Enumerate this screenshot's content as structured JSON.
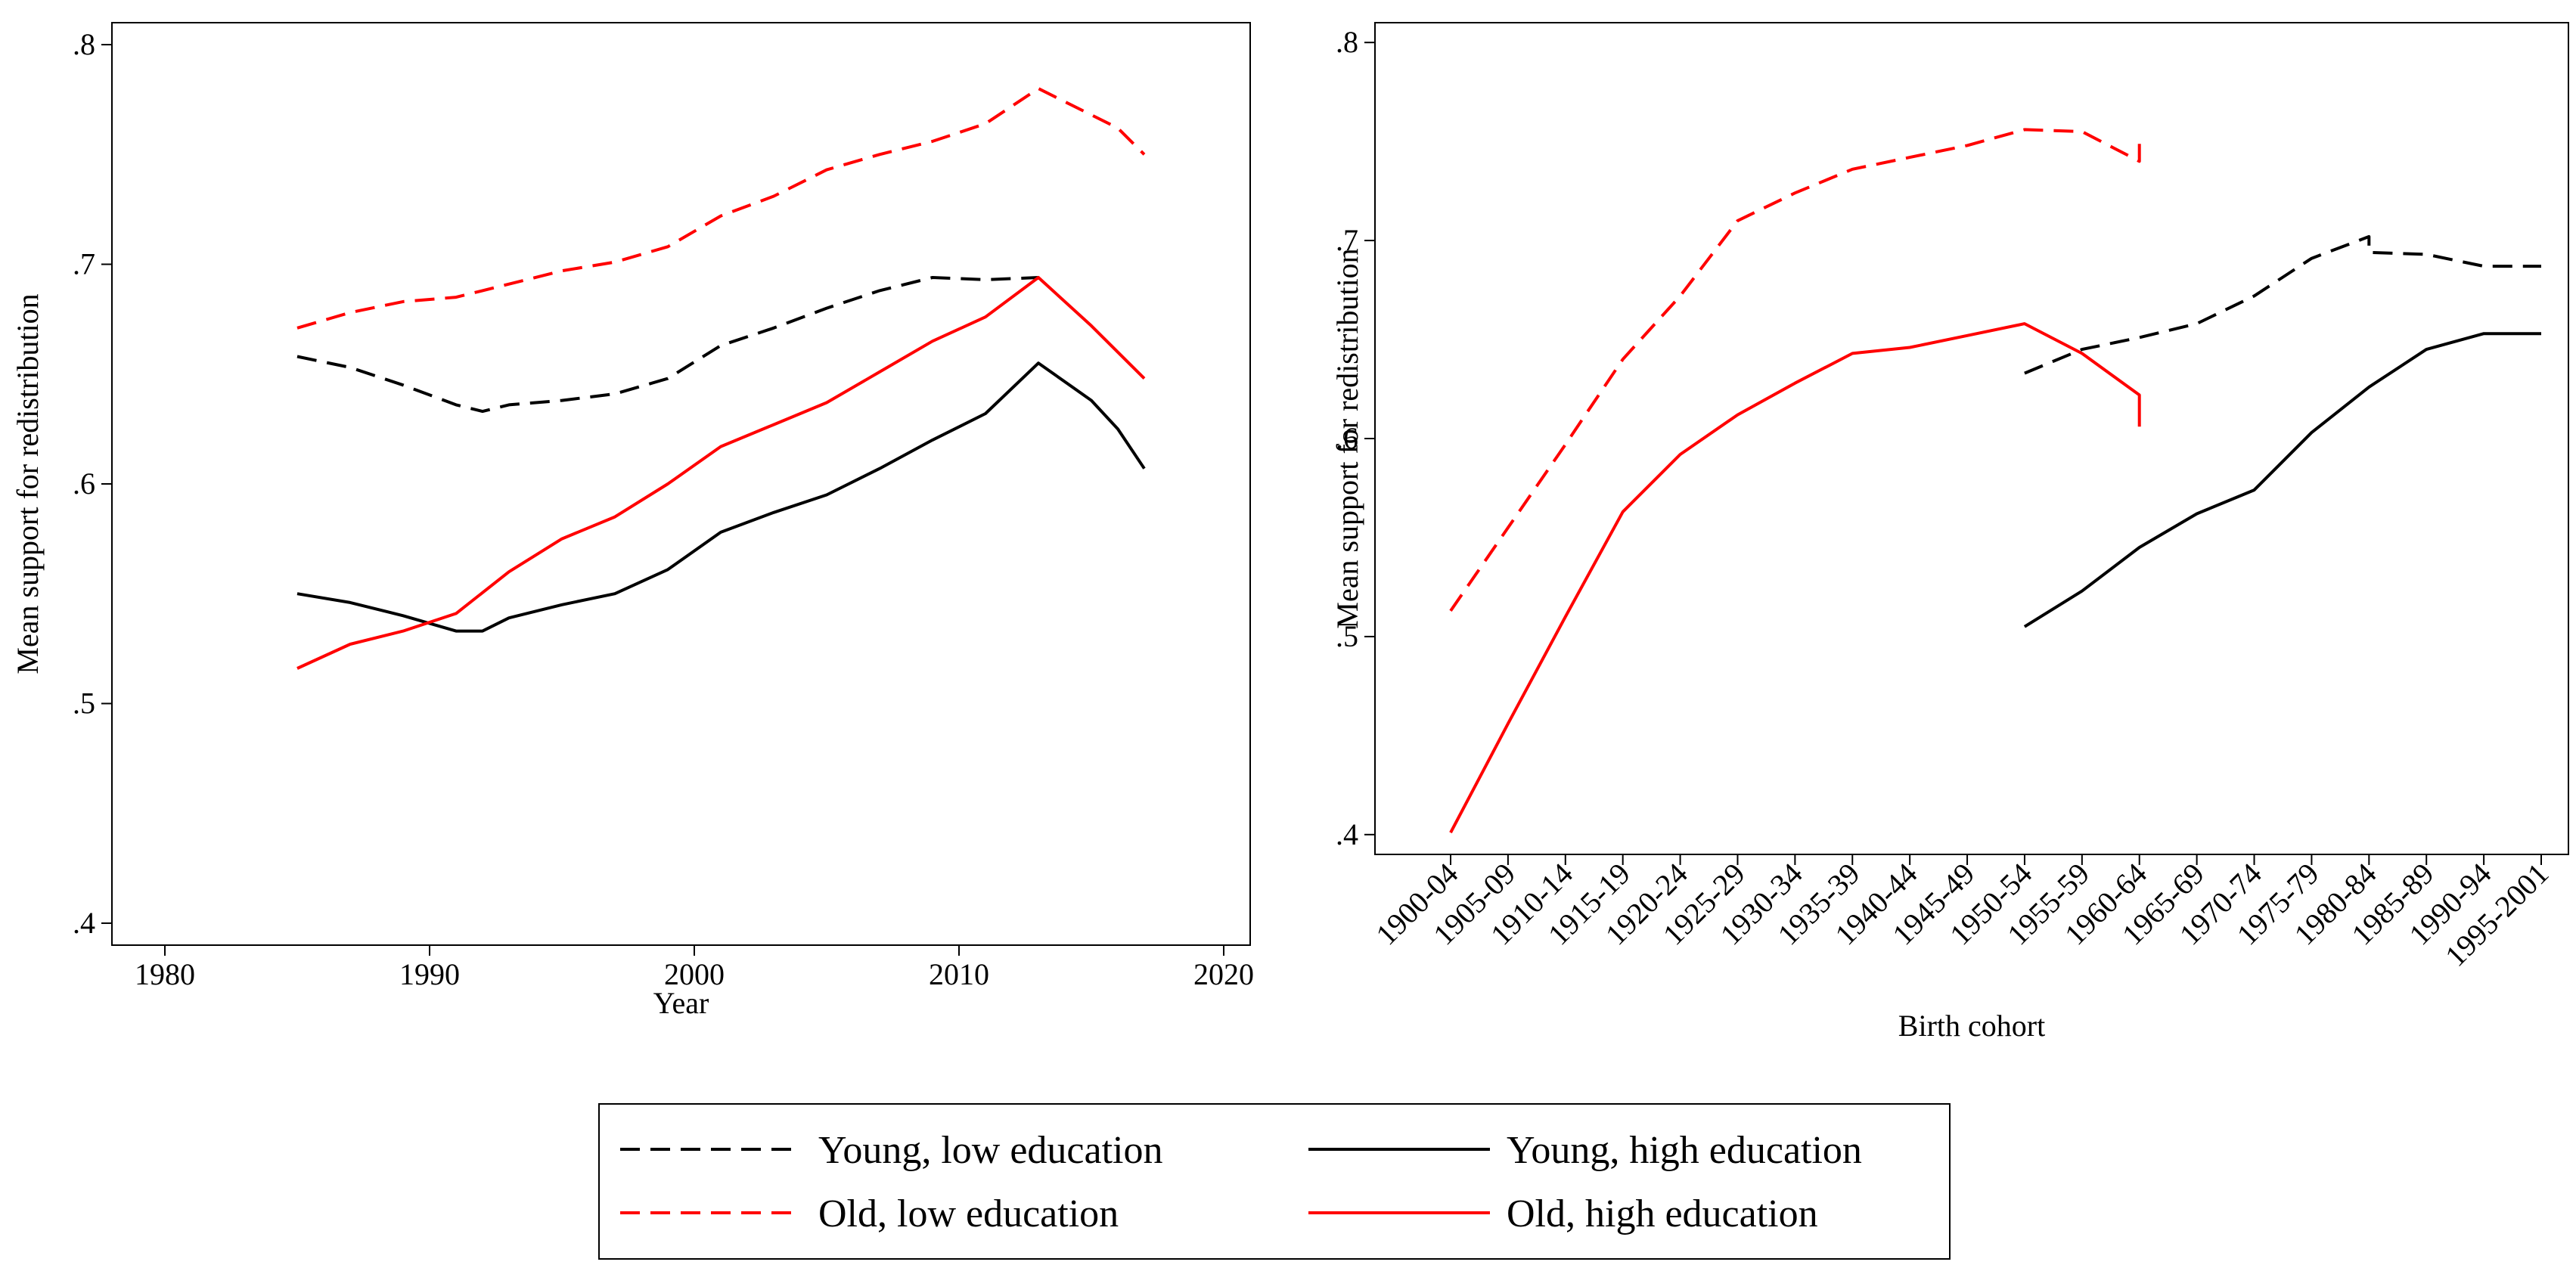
{
  "chart_data": [
    {
      "type": "line",
      "xlabel": "Year",
      "ylabel": "Mean support for redistribution",
      "xlim": [
        1978,
        2021
      ],
      "ylim": [
        0.39,
        0.81
      ],
      "x_ticks": [
        "1980",
        "1990",
        "2000",
        "2010",
        "2020"
      ],
      "y_ticks": [
        ".4",
        ".5",
        ".6",
        ".7",
        ".8"
      ],
      "series": [
        {
          "name": "Young, low education",
          "color": "#000000",
          "dash": true,
          "x": [
            1985,
            1987,
            1989,
            1991,
            1992,
            1993,
            1995,
            1997,
            1999,
            2001,
            2003,
            2005,
            2007,
            2009,
            2011,
            2013
          ],
          "y": [
            0.658,
            0.653,
            0.645,
            0.636,
            0.633,
            0.636,
            0.638,
            0.641,
            0.648,
            0.663,
            0.671,
            0.68,
            0.688,
            0.694,
            0.693,
            0.694
          ]
        },
        {
          "name": "Young, high education",
          "color": "#000000",
          "dash": false,
          "x": [
            1985,
            1987,
            1989,
            1991,
            1992,
            1993,
            1995,
            1997,
            1999,
            2001,
            2003,
            2005,
            2007,
            2009,
            2011,
            2013,
            2015,
            2016,
            2017
          ],
          "y": [
            0.55,
            0.546,
            0.54,
            0.533,
            0.533,
            0.539,
            0.545,
            0.55,
            0.561,
            0.578,
            0.587,
            0.595,
            0.607,
            0.62,
            0.632,
            0.655,
            0.638,
            0.625,
            0.607
          ]
        },
        {
          "name": "Old, low education",
          "color": "#ff0000",
          "dash": true,
          "x": [
            1985,
            1987,
            1989,
            1991,
            1993,
            1995,
            1997,
            1999,
            2001,
            2003,
            2005,
            2007,
            2009,
            2011,
            2013,
            2016,
            2017
          ],
          "y": [
            0.671,
            0.678,
            0.683,
            0.685,
            0.691,
            0.697,
            0.701,
            0.708,
            0.722,
            0.731,
            0.743,
            0.75,
            0.756,
            0.764,
            0.78,
            0.762,
            0.75
          ]
        },
        {
          "name": "Old, high education",
          "color": "#ff0000",
          "dash": false,
          "x": [
            1985,
            1987,
            1989,
            1991,
            1993,
            1995,
            1997,
            1999,
            2001,
            2003,
            2005,
            2007,
            2009,
            2011,
            2013,
            2015,
            2017
          ],
          "y": [
            0.516,
            0.527,
            0.533,
            0.541,
            0.56,
            0.575,
            0.585,
            0.6,
            0.617,
            0.627,
            0.637,
            0.651,
            0.665,
            0.676,
            0.694,
            0.672,
            0.648
          ]
        }
      ]
    },
    {
      "type": "line",
      "xlabel": "Birth cohort",
      "ylabel": "Mean support for redistribution",
      "ylim": [
        0.39,
        0.81
      ],
      "categories": [
        "1900-04",
        "1905-09",
        "1910-14",
        "1915-19",
        "1920-24",
        "1925-29",
        "1930-34",
        "1935-39",
        "1940-44",
        "1945-49",
        "1950-54",
        "1955-59",
        "1960-64",
        "1965-69",
        "1970-74",
        "1975-79",
        "1980-84",
        "1985-89",
        "1990-94",
        "1995-2001"
      ],
      "y_ticks": [
        ".4",
        ".5",
        ".6",
        ".7",
        ".8"
      ],
      "series": [
        {
          "name": "Young, low education",
          "color": "#000000",
          "dash": true,
          "x": [
            10,
            11,
            12,
            13,
            14,
            15,
            16,
            16,
            17,
            18,
            19
          ],
          "y": [
            0.633,
            0.645,
            0.651,
            0.658,
            0.672,
            0.691,
            0.702,
            0.694,
            0.693,
            0.687,
            0.687
          ]
        },
        {
          "name": "Young, high education",
          "color": "#000000",
          "dash": false,
          "x": [
            10,
            11,
            12,
            13,
            14,
            15,
            16,
            17,
            18,
            19
          ],
          "y": [
            0.505,
            0.523,
            0.545,
            0.562,
            0.574,
            0.603,
            0.626,
            0.645,
            0.653,
            0.653
          ]
        },
        {
          "name": "Old, low education",
          "color": "#ff0000",
          "dash": true,
          "x": [
            0,
            1,
            2,
            3,
            4,
            5,
            6,
            7,
            8,
            9,
            10,
            11,
            12,
            12
          ],
          "y": [
            0.513,
            0.555,
            0.597,
            0.64,
            0.672,
            0.71,
            0.724,
            0.736,
            0.742,
            0.748,
            0.756,
            0.755,
            0.74,
            0.752
          ]
        },
        {
          "name": "Old, high education",
          "color": "#ff0000",
          "dash": false,
          "x": [
            0,
            1,
            2,
            3,
            4,
            5,
            6,
            7,
            8,
            9,
            10,
            11,
            12,
            12
          ],
          "y": [
            0.401,
            0.456,
            0.51,
            0.563,
            0.592,
            0.612,
            0.628,
            0.643,
            0.646,
            0.652,
            0.658,
            0.643,
            0.622,
            0.606
          ]
        }
      ]
    }
  ],
  "legend": [
    {
      "label": "Young, low education",
      "color": "#000000",
      "dash": true
    },
    {
      "label": "Young, high education",
      "color": "#000000",
      "dash": false
    },
    {
      "label": "Old, low education",
      "color": "#ff0000",
      "dash": true
    },
    {
      "label": "Old, high education",
      "color": "#ff0000",
      "dash": false
    }
  ]
}
